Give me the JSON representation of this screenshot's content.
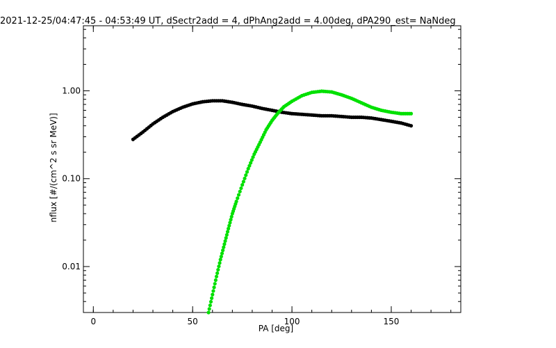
{
  "chart_data": {
    "type": "scatter",
    "title": "2021-12-25/04:47:45 - 04:53:49 UT, dSectr2add = 4, dPhAng2add = 4.00deg, dPA290_est=    NaNdeg",
    "xlabel": "PA [deg]",
    "ylabel": "nflux [#/(cm^2 s sr MeV)]",
    "xlim": [
      -5,
      185
    ],
    "ylim": [
      0.003,
      5.5
    ],
    "yscale": "log",
    "grid": false,
    "x_ticks": [
      {
        "value": 0,
        "label": "0"
      },
      {
        "value": 50,
        "label": "50"
      },
      {
        "value": 100,
        "label": "100"
      },
      {
        "value": 150,
        "label": "150"
      }
    ],
    "x_minor_step": 10,
    "y_ticks": [
      {
        "value": 0.01,
        "label": "0.01"
      },
      {
        "value": 0.1,
        "label": "0.10"
      },
      {
        "value": 1,
        "label": "1.00"
      }
    ],
    "series": [
      {
        "color": "#000000",
        "points": [
          [
            20,
            0.28
          ],
          [
            25,
            0.34
          ],
          [
            30,
            0.42
          ],
          [
            35,
            0.5
          ],
          [
            40,
            0.58
          ],
          [
            45,
            0.65
          ],
          [
            50,
            0.71
          ],
          [
            55,
            0.75
          ],
          [
            60,
            0.77
          ],
          [
            65,
            0.77
          ],
          [
            70,
            0.74
          ],
          [
            75,
            0.7
          ],
          [
            80,
            0.67
          ],
          [
            85,
            0.63
          ],
          [
            90,
            0.6
          ],
          [
            95,
            0.57
          ],
          [
            100,
            0.55
          ],
          [
            105,
            0.54
          ],
          [
            110,
            0.53
          ],
          [
            115,
            0.52
          ],
          [
            120,
            0.52
          ],
          [
            125,
            0.51
          ],
          [
            130,
            0.5
          ],
          [
            135,
            0.5
          ],
          [
            140,
            0.49
          ],
          [
            145,
            0.47
          ],
          [
            150,
            0.45
          ],
          [
            155,
            0.43
          ],
          [
            160,
            0.4
          ]
        ]
      },
      {
        "color": "#00e000",
        "points": [
          [
            58,
            0.003
          ],
          [
            60,
            0.0048
          ],
          [
            62,
            0.0077
          ],
          [
            64,
            0.012
          ],
          [
            66,
            0.018
          ],
          [
            68,
            0.027
          ],
          [
            70,
            0.04
          ],
          [
            72,
            0.055
          ],
          [
            75,
            0.085
          ],
          [
            78,
            0.13
          ],
          [
            81,
            0.19
          ],
          [
            84,
            0.26
          ],
          [
            87,
            0.36
          ],
          [
            90,
            0.46
          ],
          [
            93,
            0.56
          ],
          [
            96,
            0.66
          ],
          [
            100,
            0.76
          ],
          [
            105,
            0.88
          ],
          [
            110,
            0.96
          ],
          [
            115,
            0.99
          ],
          [
            120,
            0.97
          ],
          [
            125,
            0.9
          ],
          [
            130,
            0.82
          ],
          [
            135,
            0.73
          ],
          [
            140,
            0.65
          ],
          [
            145,
            0.6
          ],
          [
            150,
            0.57
          ],
          [
            155,
            0.55
          ],
          [
            160,
            0.55
          ]
        ]
      }
    ]
  }
}
